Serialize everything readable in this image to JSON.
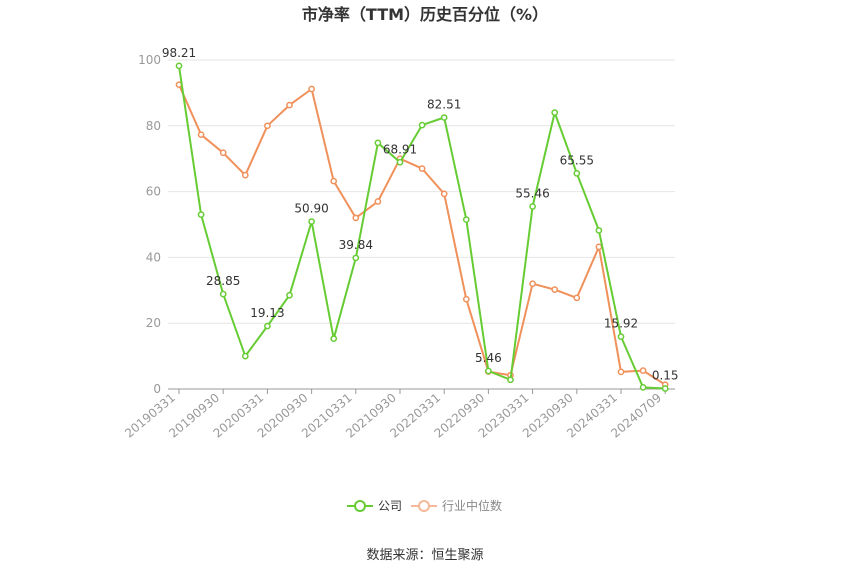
{
  "chart_data": {
    "type": "line",
    "title": "市净率（TTM）历史百分位（%）",
    "source": "数据来源：恒生聚源",
    "ylim": [
      0,
      100
    ],
    "yticks": [
      0,
      20,
      40,
      60,
      80,
      100
    ],
    "grid": true,
    "legend_position": "bottom",
    "x": [
      "20190331",
      "20190630",
      "20190930",
      "20191231",
      "20200331",
      "20200630",
      "20200930",
      "20201231",
      "20210331",
      "20210630",
      "20210930",
      "20211231",
      "20220331",
      "20220630",
      "20220930",
      "20221231",
      "20230331",
      "20230630",
      "20230930",
      "20231231",
      "20240331",
      "20240630",
      "20240709"
    ],
    "x_tick_labels": [
      "20190331",
      "20190930",
      "20200331",
      "20200930",
      "20210331",
      "20210930",
      "20220331",
      "20220930",
      "20230331",
      "20230930",
      "20240331",
      "20240709"
    ],
    "series": [
      {
        "name": "公司",
        "color": "#66cc33",
        "values": [
          98.21,
          53.0,
          28.85,
          10.0,
          19.13,
          28.5,
          50.9,
          15.3,
          39.84,
          74.8,
          68.91,
          80.2,
          82.51,
          51.5,
          5.46,
          2.8,
          55.46,
          84.0,
          65.55,
          48.2,
          15.92,
          0.5,
          0.15
        ],
        "labels": {
          "0": "98.21",
          "2": "28.85",
          "4": "19.13",
          "6": "50.90",
          "8": "39.84",
          "10": "68.91",
          "12": "82.51",
          "14": "5.46",
          "16": "55.46",
          "18": "65.55",
          "20": "15.92",
          "22": "0.15"
        }
      },
      {
        "name": "行业中位数",
        "color": "#f0905a",
        "values": [
          92.5,
          77.3,
          71.8,
          65.0,
          80.0,
          86.3,
          91.2,
          63.2,
          52.0,
          57.0,
          70.0,
          67.0,
          59.3,
          27.3,
          5.3,
          4.2,
          32.0,
          30.2,
          27.7,
          43.2,
          5.2,
          5.6,
          1.3
        ]
      }
    ]
  }
}
